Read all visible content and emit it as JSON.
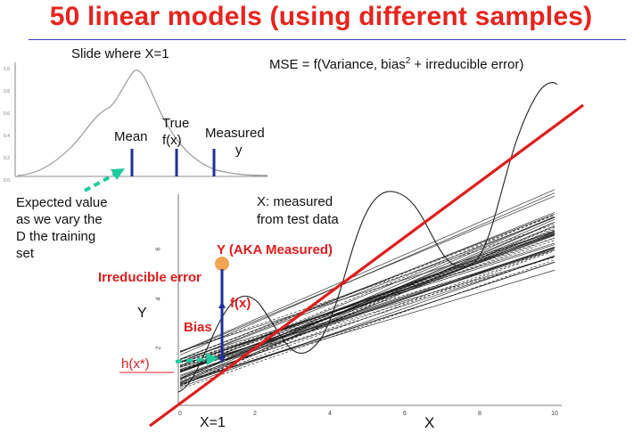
{
  "slide": {
    "title": "50 linear models (using different samples)"
  },
  "inset": {
    "title": "Slide where X=1",
    "y_ticks": [
      "1.0",
      "0.8",
      "0.6",
      "0.4",
      "0.2",
      "0.0"
    ],
    "labels": {
      "mean": "Mean",
      "true_line1": "True",
      "true_line2": "f(x)",
      "measured_line1": "Measured",
      "measured_line2": "y"
    }
  },
  "annotations": {
    "mse": "MSE = f(Variance, bias",
    "mse_sup": "2",
    "mse_rest": " + irreducible error)",
    "expected_lines": [
      "Expected value",
      "as we vary the",
      "D the training",
      "set"
    ],
    "x_measured_lines": [
      "X: measured",
      "from test data"
    ],
    "y_measured": "Y (AKA Measured)",
    "irreducible_error": "Irreducible error",
    "fx": "f(x)",
    "bias": "Bias",
    "hx": "h(x*)",
    "x_eq_1": "X=1"
  },
  "colors": {
    "title": "#e8231d",
    "accent_red": "#e01c1c",
    "marker_blue": "#1f2f9a",
    "arrow_teal": "#1fcca0",
    "measured_dot": "#f2a654"
  },
  "chart_data": {
    "type": "line",
    "xlabel": "X",
    "ylabel": "Y",
    "xlim": [
      0,
      10
    ],
    "ylim": [
      0,
      8
    ],
    "x_ticks": [
      0,
      2,
      4,
      6,
      8,
      10
    ],
    "y_ticks": [
      2,
      4,
      6
    ],
    "true_function": "sinusoid around the linear trend",
    "n_models": 50,
    "regression_line": {
      "x": [
        0,
        10
      ],
      "y": [
        0.0,
        7.0
      ]
    },
    "measured_point": {
      "x": 1,
      "y": 4.8
    },
    "fx_point": {
      "x": 1,
      "y": 2.6
    },
    "hx_point": {
      "x": 1,
      "y": 1.1
    }
  }
}
